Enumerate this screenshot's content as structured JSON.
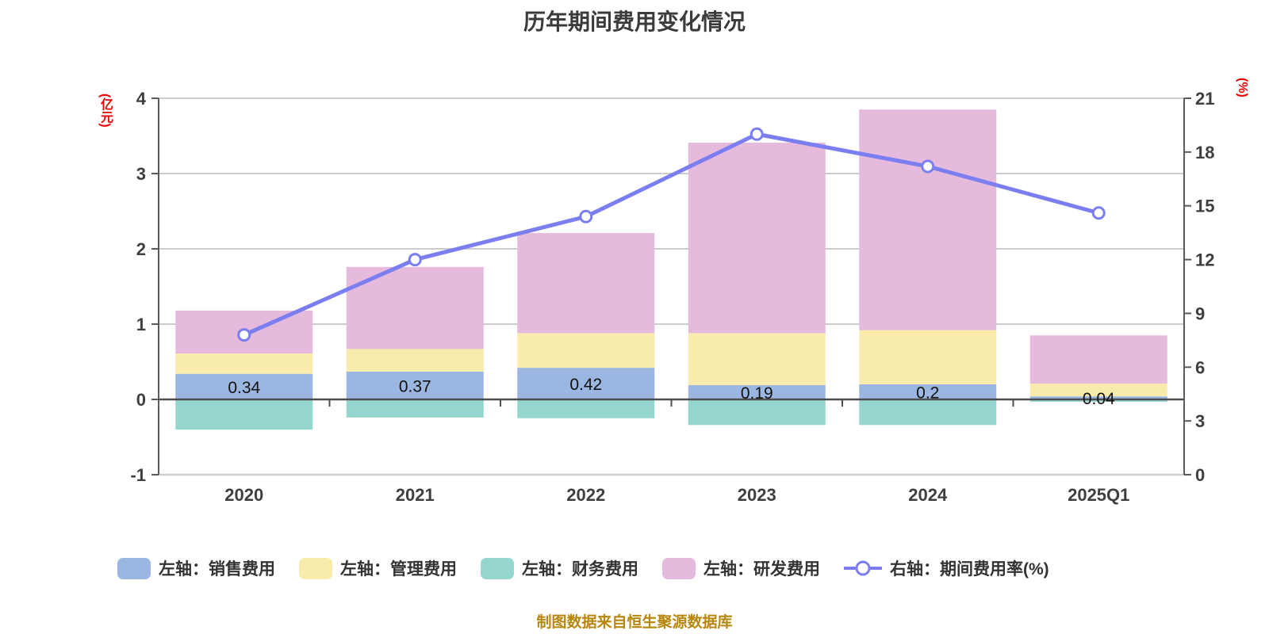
{
  "title": "历年期间费用变化情况",
  "footer": "制图数据来自恒生聚源数据库",
  "colors": {
    "sales": "#9ab6e1",
    "admin": "#f9ebab",
    "finance": "#95d6ce",
    "rd": "#e6badd",
    "rate_line": "#7b7ef0",
    "grid": "#cccccc",
    "zero_line": "#4d4d4d",
    "axis_line": "#5a5a5a",
    "bottom_line": "#cfcfcf",
    "unit_label": "#ec0000"
  },
  "left_axis": {
    "unit": "(亿元)",
    "ticks": [
      4,
      3,
      2,
      1,
      0,
      -1
    ],
    "lim": [
      -1,
      4
    ]
  },
  "right_axis": {
    "unit": "(%)",
    "ticks": [
      21,
      18,
      15,
      12,
      9,
      6,
      3,
      0
    ],
    "lim": [
      0,
      21
    ]
  },
  "chart_data": {
    "type": "bar",
    "subtype": "stacked bars + right-axis line",
    "title": "历年期间费用变化情况",
    "categories": [
      "2020",
      "2021",
      "2022",
      "2023",
      "2024",
      "2025Q1"
    ],
    "series": [
      {
        "key": "sales",
        "name": "左轴：销售费用",
        "axis": "left",
        "type": "bar",
        "color": "#9ab6e1",
        "values": [
          0.34,
          0.37,
          0.42,
          0.19,
          0.2,
          0.04
        ]
      },
      {
        "key": "admin",
        "name": "左轴：管理费用",
        "axis": "left",
        "type": "bar",
        "color": "#f9ebab",
        "values": [
          0.27,
          0.3,
          0.46,
          0.69,
          0.72,
          0.17
        ]
      },
      {
        "key": "finance",
        "name": "左轴：财务费用",
        "axis": "left",
        "type": "bar",
        "color": "#95d6ce",
        "values": [
          -0.4,
          -0.24,
          -0.25,
          -0.34,
          -0.34,
          -0.03
        ]
      },
      {
        "key": "rd",
        "name": "左轴：研发费用",
        "axis": "left",
        "type": "bar",
        "color": "#e6badd",
        "values": [
          0.57,
          1.09,
          1.33,
          2.53,
          2.93,
          0.64
        ]
      },
      {
        "key": "rate",
        "name": "右轴：期间费用率(%)",
        "axis": "right",
        "type": "line",
        "color": "#7b7ef0",
        "values": [
          7.8,
          12.0,
          14.4,
          19.0,
          17.2,
          14.6
        ]
      }
    ],
    "bar_labels": [
      "0.34",
      "0.37",
      "0.42",
      "0.19",
      "0.2",
      "0.04"
    ],
    "ylabel_left": "(亿元)",
    "ylabel_right": "(%)",
    "left_ylim": [
      -1,
      4
    ],
    "right_ylim": [
      0,
      21
    ],
    "grid": "horizontal",
    "legend_position": "bottom"
  }
}
